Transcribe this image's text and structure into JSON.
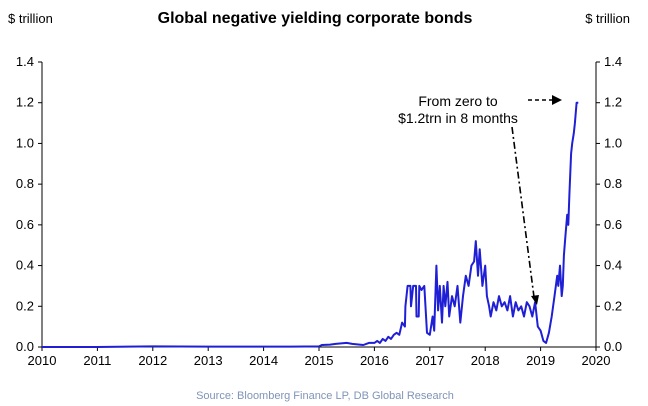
{
  "chart_data": {
    "type": "line",
    "title": "Global negative yielding corporate bonds",
    "ylabel_left": "$ trillion",
    "ylabel_right": "$ trillion",
    "source": "Source: Bloomberg Finance LP, DB Global Research",
    "xlim": [
      2010,
      2020
    ],
    "ylim": [
      0,
      1.4
    ],
    "x_ticks": [
      "2010",
      "2011",
      "2012",
      "2013",
      "2014",
      "2015",
      "2016",
      "2017",
      "2018",
      "2019",
      "2020"
    ],
    "y_ticks": [
      "0.0",
      "0.2",
      "0.4",
      "0.6",
      "0.8",
      "1.0",
      "1.2",
      "1.4"
    ],
    "grid": false,
    "annotation": {
      "lines": [
        "From zero to",
        "$1.2trn in 8 months"
      ]
    },
    "series": [
      {
        "color": "#1f1fd6",
        "x": [
          2010.0,
          2011.0,
          2012.0,
          2013.0,
          2014.0,
          2014.5,
          2015.0,
          2015.05,
          2015.2,
          2015.3,
          2015.5,
          2015.6,
          2015.8,
          2015.9,
          2016.0,
          2016.05,
          2016.1,
          2016.15,
          2016.2,
          2016.25,
          2016.3,
          2016.35,
          2016.4,
          2016.45,
          2016.5,
          2016.55,
          2016.56,
          2016.6,
          2016.65,
          2016.66,
          2016.7,
          2016.75,
          2016.76,
          2016.8,
          2016.81,
          2016.85,
          2016.9,
          2016.95,
          2017.0,
          2017.05,
          2017.08,
          2017.12,
          2017.15,
          2017.18,
          2017.22,
          2017.25,
          2017.28,
          2017.32,
          2017.35,
          2017.4,
          2017.45,
          2017.5,
          2017.55,
          2017.6,
          2017.65,
          2017.7,
          2017.75,
          2017.8,
          2017.83,
          2017.87,
          2017.9,
          2017.95,
          2018.0,
          2018.03,
          2018.07,
          2018.1,
          2018.15,
          2018.2,
          2018.25,
          2018.3,
          2018.35,
          2018.4,
          2018.45,
          2018.5,
          2018.55,
          2018.6,
          2018.65,
          2018.7,
          2018.75,
          2018.8,
          2018.85,
          2018.9,
          2018.95,
          2019.0,
          2019.05,
          2019.1,
          2019.15,
          2019.2,
          2019.25,
          2019.3,
          2019.32,
          2019.35,
          2019.38,
          2019.4,
          2019.42,
          2019.45,
          2019.48,
          2019.5,
          2019.52,
          2019.55,
          2019.57,
          2019.6,
          2019.62,
          2019.65,
          2019.68
        ],
        "values": [
          0.0,
          0.0,
          0.003,
          0.002,
          0.002,
          0.002,
          0.003,
          0.01,
          0.012,
          0.015,
          0.02,
          0.015,
          0.01,
          0.02,
          0.02,
          0.03,
          0.02,
          0.04,
          0.03,
          0.05,
          0.04,
          0.06,
          0.07,
          0.06,
          0.12,
          0.1,
          0.2,
          0.3,
          0.3,
          0.2,
          0.3,
          0.3,
          0.15,
          0.15,
          0.3,
          0.28,
          0.3,
          0.07,
          0.06,
          0.15,
          0.08,
          0.4,
          0.18,
          0.3,
          0.12,
          0.3,
          0.2,
          0.32,
          0.15,
          0.25,
          0.2,
          0.3,
          0.12,
          0.25,
          0.35,
          0.3,
          0.4,
          0.42,
          0.52,
          0.35,
          0.48,
          0.3,
          0.4,
          0.25,
          0.2,
          0.15,
          0.22,
          0.18,
          0.25,
          0.2,
          0.22,
          0.18,
          0.25,
          0.15,
          0.22,
          0.18,
          0.2,
          0.15,
          0.22,
          0.2,
          0.15,
          0.22,
          0.1,
          0.08,
          0.03,
          0.02,
          0.07,
          0.15,
          0.25,
          0.35,
          0.3,
          0.4,
          0.25,
          0.3,
          0.45,
          0.55,
          0.65,
          0.6,
          0.75,
          0.95,
          1.0,
          1.05,
          1.1,
          1.2,
          1.2
        ]
      }
    ]
  }
}
